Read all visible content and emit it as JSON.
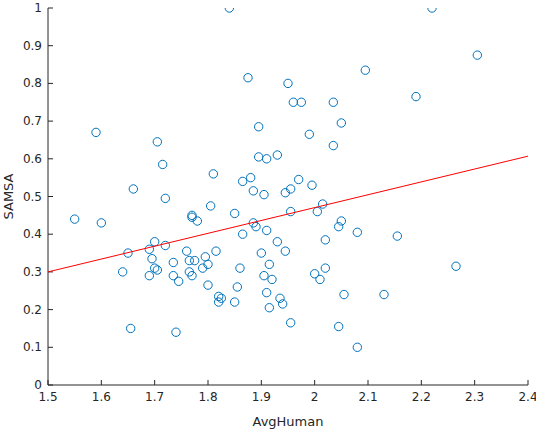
{
  "chart_data": {
    "type": "scatter",
    "x_label": "AvgHuman",
    "y_label": "SAMSA",
    "xlim": [
      1.5,
      2.4
    ],
    "xticks": [
      1.5,
      1.6,
      1.7,
      1.8,
      1.9,
      2,
      2.1,
      2.2,
      2.3,
      2.4
    ],
    "ylim": [
      0,
      1
    ],
    "yticks": [
      0,
      0.1,
      0.2,
      0.3,
      0.4,
      0.5,
      0.6,
      0.7,
      0.8,
      0.9,
      1
    ],
    "series": [
      {
        "type": "scatter",
        "color": "#0072bd",
        "marker": "circle",
        "x": [
          1.55,
          1.59,
          1.6,
          1.64,
          1.65,
          1.655,
          1.66,
          1.69,
          1.69,
          1.695,
          1.7,
          1.7,
          1.705,
          1.705,
          1.715,
          1.72,
          1.72,
          1.735,
          1.735,
          1.74,
          1.745,
          1.76,
          1.765,
          1.765,
          1.77,
          1.77,
          1.77,
          1.775,
          1.78,
          1.79,
          1.795,
          1.8,
          1.8,
          1.805,
          1.81,
          1.815,
          1.82,
          1.82,
          1.825,
          1.84,
          1.85,
          1.85,
          1.855,
          1.86,
          1.865,
          1.865,
          1.875,
          1.88,
          1.885,
          1.885,
          1.89,
          1.895,
          1.895,
          1.9,
          1.905,
          1.905,
          1.91,
          1.91,
          1.91,
          1.915,
          1.915,
          1.92,
          1.93,
          1.93,
          1.935,
          1.94,
          1.945,
          1.945,
          1.95,
          1.955,
          1.955,
          1.955,
          1.96,
          1.97,
          1.975,
          1.99,
          1.995,
          2.0,
          2.005,
          2.01,
          2.015,
          2.02,
          2.02,
          2.035,
          2.035,
          2.045,
          2.045,
          2.05,
          2.05,
          2.055,
          2.08,
          2.08,
          2.095,
          2.13,
          2.155,
          2.19,
          2.22,
          2.265,
          2.305
        ],
        "values": [
          0.44,
          0.67,
          0.43,
          0.3,
          0.35,
          0.15,
          0.52,
          0.29,
          0.36,
          0.335,
          0.38,
          0.31,
          0.305,
          0.645,
          0.585,
          0.495,
          0.37,
          0.325,
          0.29,
          0.14,
          0.275,
          0.355,
          0.3,
          0.33,
          0.445,
          0.45,
          0.29,
          0.33,
          0.435,
          0.31,
          0.34,
          0.265,
          0.32,
          0.475,
          0.56,
          0.355,
          0.235,
          0.22,
          0.23,
          1.0,
          0.22,
          0.455,
          0.26,
          0.31,
          0.4,
          0.54,
          0.815,
          0.55,
          0.515,
          0.43,
          0.42,
          0.605,
          0.685,
          0.35,
          0.505,
          0.29,
          0.6,
          0.41,
          0.245,
          0.205,
          0.32,
          0.28,
          0.61,
          0.38,
          0.23,
          0.215,
          0.355,
          0.51,
          0.8,
          0.52,
          0.46,
          0.165,
          0.75,
          0.545,
          0.75,
          0.665,
          0.53,
          0.295,
          0.46,
          0.28,
          0.48,
          0.31,
          0.385,
          0.635,
          0.75,
          0.42,
          0.155,
          0.695,
          0.435,
          0.24,
          0.1,
          0.405,
          0.835,
          0.24,
          0.395,
          0.765,
          1.0,
          0.315,
          0.875
        ]
      },
      {
        "type": "line",
        "color": "#ff0000",
        "x": [
          1.5,
          2.4
        ],
        "values": [
          0.3,
          0.607
        ]
      }
    ]
  }
}
